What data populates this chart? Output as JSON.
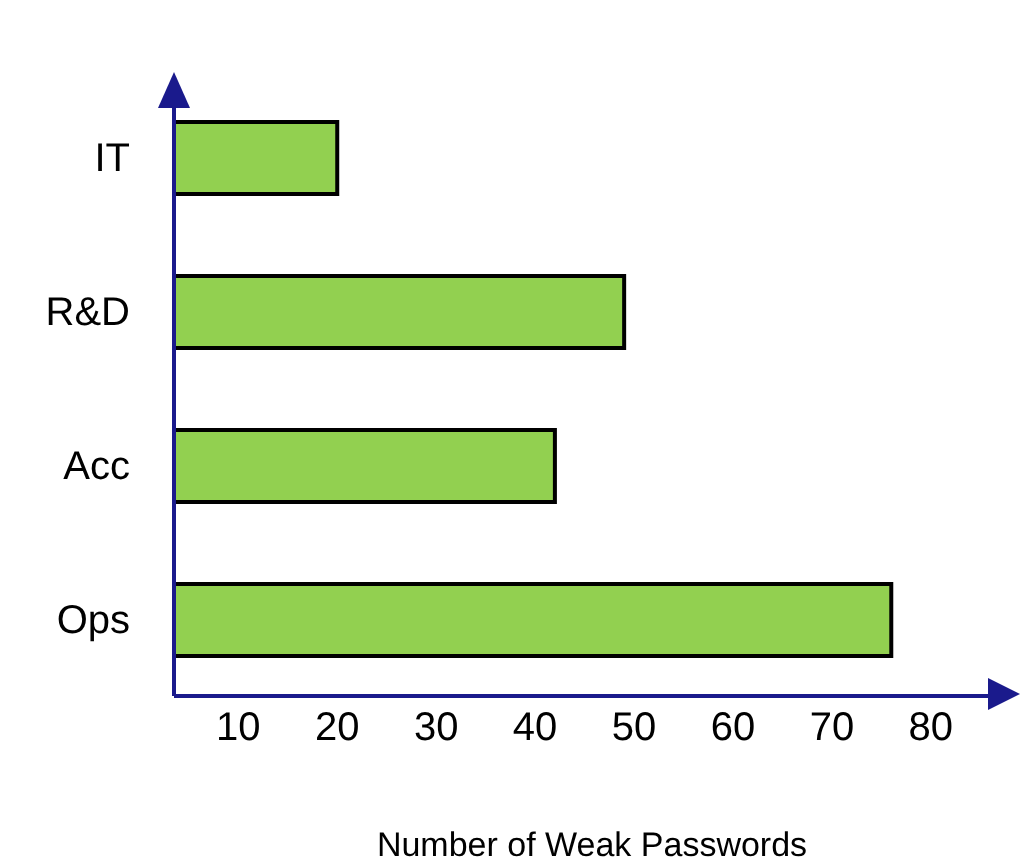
{
  "chart_data": {
    "type": "bar",
    "orientation": "horizontal",
    "categories": [
      "IT",
      "R&D",
      "Acc",
      "Ops"
    ],
    "values": [
      20,
      49,
      42,
      76
    ],
    "color": "#92d050",
    "xlabel": "Number of Weak Passwords",
    "xlim": [
      3.5,
      88
    ],
    "xticks": [
      10,
      20,
      30,
      40,
      50,
      60,
      70,
      80
    ],
    "grid": false
  }
}
